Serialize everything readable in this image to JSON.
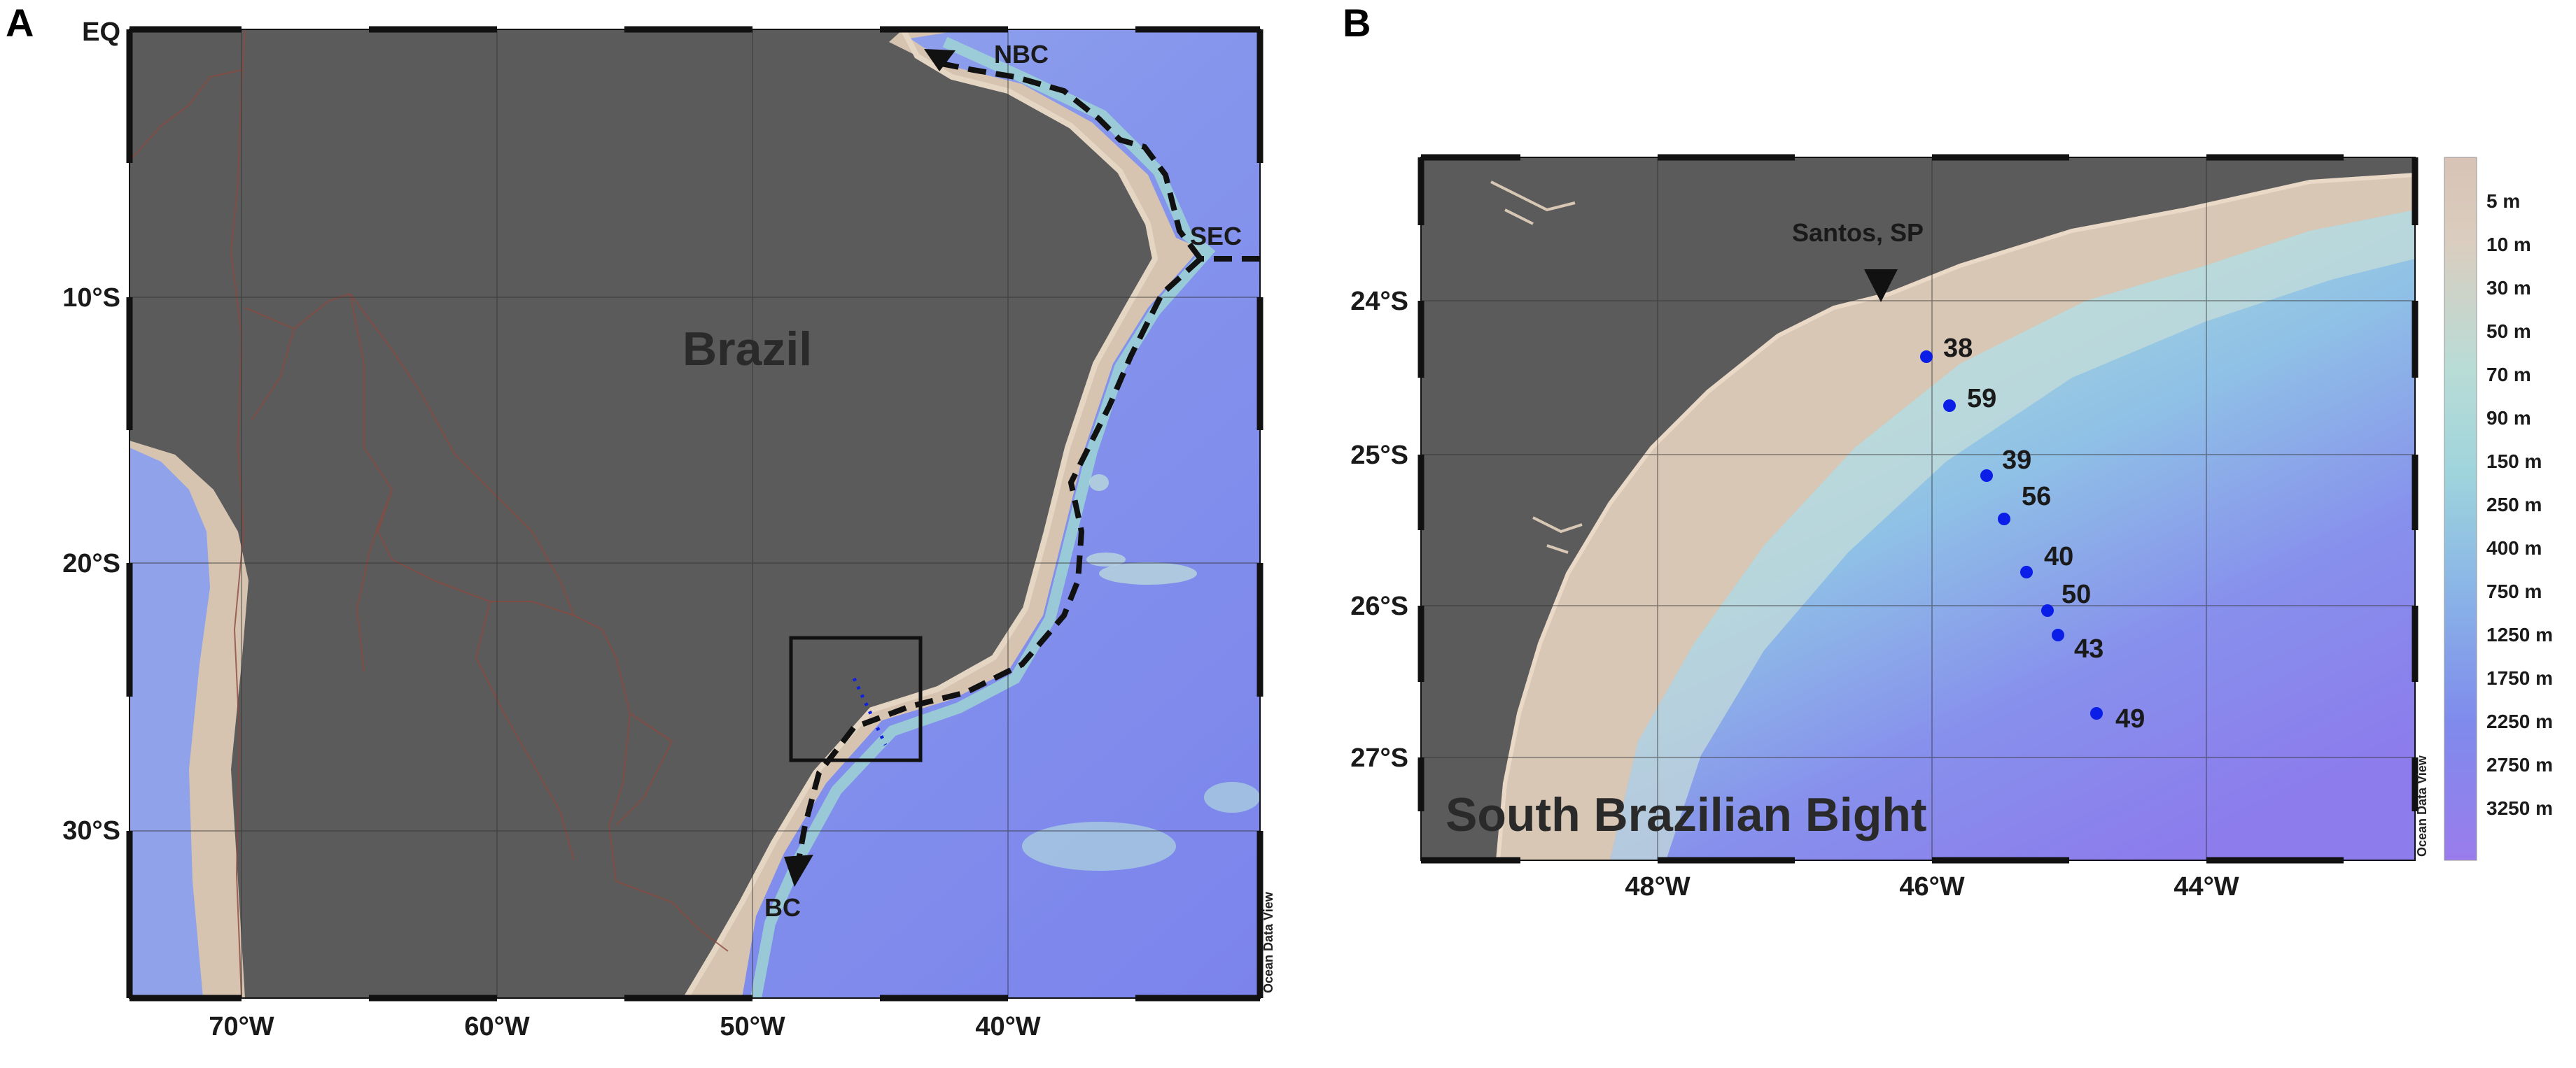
{
  "panels": {
    "a": {
      "letter": "A",
      "lon_ticks": [
        "70°W",
        "60°W",
        "50°W",
        "40°W"
      ],
      "lat_ticks": [
        "EQ",
        "10°S",
        "20°S",
        "30°S"
      ],
      "country_label": "Brazil",
      "currents": {
        "nbc": "NBC",
        "sec": "SEC",
        "bc": "BC"
      },
      "watermark": "Ocean Data View"
    },
    "b": {
      "letter": "B",
      "lon_ticks": [
        "48°W",
        "46°W",
        "44°W"
      ],
      "lat_ticks": [
        "24°S",
        "25°S",
        "26°S",
        "27°S"
      ],
      "city_label": "Santos, SP",
      "region_label": "South Brazilian Bight",
      "stations": [
        "38",
        "59",
        "39",
        "56",
        "40",
        "50",
        "43",
        "49"
      ],
      "watermark": "Ocean Data View"
    }
  },
  "depth_legend": {
    "labels": [
      "5 m",
      "10 m",
      "30 m",
      "50 m",
      "70 m",
      "90 m",
      "150 m",
      "250 m",
      "400 m",
      "750 m",
      "1250 m",
      "1750 m",
      "2250 m",
      "2750 m",
      "3250 m"
    ]
  },
  "colors": {
    "land": "#5b5b5b",
    "shelf": "#d8c6b4",
    "shallow_ocean": "#a9d6d6",
    "mid_ocean": "#8aa9e8",
    "deep_ocean": "#7f88ee",
    "station_marker": "#0a1ee8",
    "current_path": "#111111"
  }
}
